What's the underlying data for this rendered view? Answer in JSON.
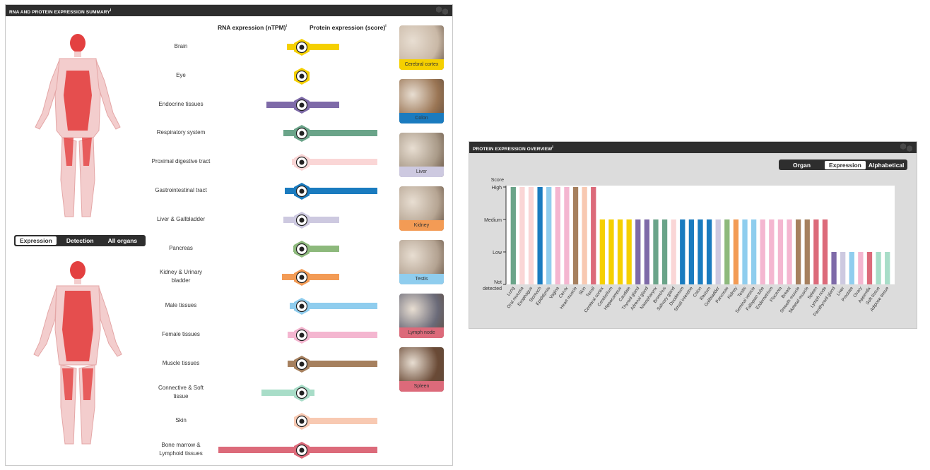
{
  "left_panel": {
    "title": "RNA AND PROTEIN EXPRESSION SUMMARY",
    "col_rna": "RNA expression (nTPM)",
    "col_protein": "Protein expression (score)",
    "toggle": [
      "Expression",
      "Detection",
      "All organs"
    ],
    "rows": [
      {
        "label": "Brain",
        "color": "#f5d000",
        "rna": 0.18,
        "protein": 0.36
      },
      {
        "label": "Eye",
        "color": "#f5d000",
        "rna": 0.0,
        "protein": 0.0
      },
      {
        "label": "Endocrine tissues",
        "color": "#7e6aa8",
        "rna": 0.42,
        "protein": 0.36
      },
      {
        "label": "Respiratory system",
        "color": "#6aa489",
        "rna": 0.22,
        "protein": 0.72
      },
      {
        "label": "Proximal digestive tract",
        "color": "#fad6d6",
        "rna": 0.12,
        "protein": 0.72
      },
      {
        "label": "Gastrointestinal tract",
        "color": "#1a7bbf",
        "rna": 0.2,
        "protein": 0.72
      },
      {
        "label": "Liver & Gallbladder",
        "color": "#cdc9e0",
        "rna": 0.22,
        "protein": 0.36
      },
      {
        "label": "Pancreas",
        "color": "#8db97c",
        "rna": 0.1,
        "protein": 0.36
      },
      {
        "label": "Kidney & Urinary\nbladder",
        "color": "#f39b55",
        "rna": 0.24,
        "protein": 0.36
      },
      {
        "label": "Male tissues",
        "color": "#8fcdee",
        "rna": 0.14,
        "protein": 0.72
      },
      {
        "label": "Female tissues",
        "color": "#f4b6d0",
        "rna": 0.17,
        "protein": 0.72
      },
      {
        "label": "Muscle tissues",
        "color": "#a6805e",
        "rna": 0.17,
        "protein": 0.72
      },
      {
        "label": "Connective & Soft\ntissue",
        "color": "#a8ddc8",
        "rna": 0.48,
        "protein": 0.12
      },
      {
        "label": "Skin",
        "color": "#f8c9b2",
        "rna": 0.08,
        "protein": 0.72
      },
      {
        "label": "Bone marrow &\nLymphoid tissues",
        "color": "#dc6a7a",
        "rna": 1.0,
        "protein": 0.72
      }
    ],
    "thumbnails": [
      {
        "label": "Cerebral cortex",
        "color": "#f5d000",
        "bg": "#c9b8a6"
      },
      {
        "label": "Colon",
        "color": "#1a7bbf",
        "bg": "#9a7554"
      },
      {
        "label": "Liver",
        "color": "#cdc9e0",
        "bg": "#a99a88"
      },
      {
        "label": "Kidney",
        "color": "#f39b55",
        "bg": "#b6a593"
      },
      {
        "label": "Testis",
        "color": "#8fcdee",
        "bg": "#b3a291"
      },
      {
        "label": "Lymph node",
        "color": "#dc6a7a",
        "bg": "#6a6a78"
      },
      {
        "label": "Spleen",
        "color": "#dc6a7a",
        "bg": "#6a4a36"
      }
    ]
  },
  "right_panel": {
    "title": "PROTEIN EXPRESSION OVERVIEW",
    "toggle": [
      "Organ",
      "Expression",
      "Alphabetical"
    ]
  },
  "chart_data": {
    "type": "bar",
    "ylabel": "Score",
    "y_ticks": [
      "Not detected",
      "Low",
      "Medium",
      "High"
    ],
    "ylim": [
      0,
      3
    ],
    "categories": [
      "Lung",
      "Oral mucosa",
      "Esophagus",
      "Stomach",
      "Epididymis",
      "Vagina",
      "Cervix",
      "Heart muscle",
      "Skin",
      "Tonsil",
      "Cerebral cortex",
      "Cerebellum",
      "Hippocampus",
      "Caudate",
      "Thyroid gland",
      "Adrenal gland",
      "Nasopharynx",
      "Bronchus",
      "Salivary gland",
      "Duodenum",
      "Small intestine",
      "Colon",
      "Rectum",
      "Gallbladder",
      "Pancreas",
      "Kidney",
      "Testis",
      "Seminal vesicle",
      "Fallopian tube",
      "Endometrium",
      "Placenta",
      "Breast",
      "Smooth muscle",
      "Skeletal muscle",
      "Spleen",
      "Lymph node",
      "Parathyroid gland",
      "Liver",
      "Prostate",
      "Ovary",
      "Appendix",
      "Soft tissue",
      "Adipose tissue"
    ],
    "values": [
      3,
      3,
      3,
      3,
      3,
      3,
      3,
      3,
      3,
      3,
      2,
      2,
      2,
      2,
      2,
      2,
      2,
      2,
      2,
      2,
      2,
      2,
      2,
      2,
      2,
      2,
      2,
      2,
      2,
      2,
      2,
      2,
      2,
      2,
      2,
      2,
      1,
      1,
      1,
      1,
      1,
      1,
      1
    ],
    "colors": [
      "#6aa489",
      "#fad6d6",
      "#fad6d6",
      "#1a7bbf",
      "#8fcdee",
      "#f4b6d0",
      "#f4b6d0",
      "#a6805e",
      "#f8c9b2",
      "#dc6a7a",
      "#f5d000",
      "#f5d000",
      "#f5d000",
      "#f5d000",
      "#7e6aa8",
      "#7e6aa8",
      "#6aa489",
      "#6aa489",
      "#fad6d6",
      "#1a7bbf",
      "#1a7bbf",
      "#1a7bbf",
      "#1a7bbf",
      "#cdc9e0",
      "#8db97c",
      "#f39b55",
      "#8fcdee",
      "#8fcdee",
      "#f4b6d0",
      "#f4b6d0",
      "#f4b6d0",
      "#f4b6d0",
      "#a6805e",
      "#a6805e",
      "#dc6a7a",
      "#dc6a7a",
      "#7e6aa8",
      "#cdc9e0",
      "#8fcdee",
      "#f4b6d0",
      "#dc6a7a",
      "#a8ddc8",
      "#a8ddc8"
    ]
  }
}
